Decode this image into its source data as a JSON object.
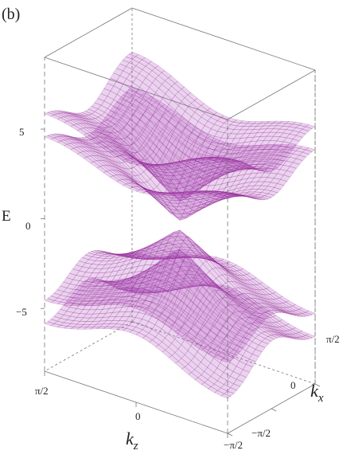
{
  "panel_label": "(b)",
  "chart_data": {
    "type": "surface3d",
    "title": "",
    "zlabel": "E",
    "xlabel_base": "k",
    "xlabel_sub": "z",
    "ylabel_base": "k",
    "ylabel_sub": "x",
    "z_ticks": [
      "5",
      "0",
      "−5"
    ],
    "x_ticks": [
      "π/2",
      "0",
      "−π/2"
    ],
    "y_ticks": [
      "π/2",
      "0",
      "−π/2"
    ],
    "xlim": [
      -1.5708,
      1.5708
    ],
    "ylim": [
      -1.5708,
      1.5708
    ],
    "zlim": [
      -8.5,
      9
    ],
    "grid": false,
    "surface_color": "#8b1a8b",
    "surface_fill": "#b460c2",
    "bands": [
      {
        "name": "",
        "energies_at_corner_kz_pos_kx_pos": 7.4,
        "energies_at_center": 1.2
      },
      {
        "name": "",
        "energies_at_corner_kz_pos_kx_pos": 5.2,
        "energies_at_center": 0.2
      },
      {
        "name": "",
        "energies_at_corner_kz_pos_kx_pos": -5.2,
        "energies_at_center": -0.2
      },
      {
        "name": "",
        "energies_at_corner_kz_pos_kx_pos": -7.4,
        "energies_at_center": -1.2
      }
    ]
  }
}
